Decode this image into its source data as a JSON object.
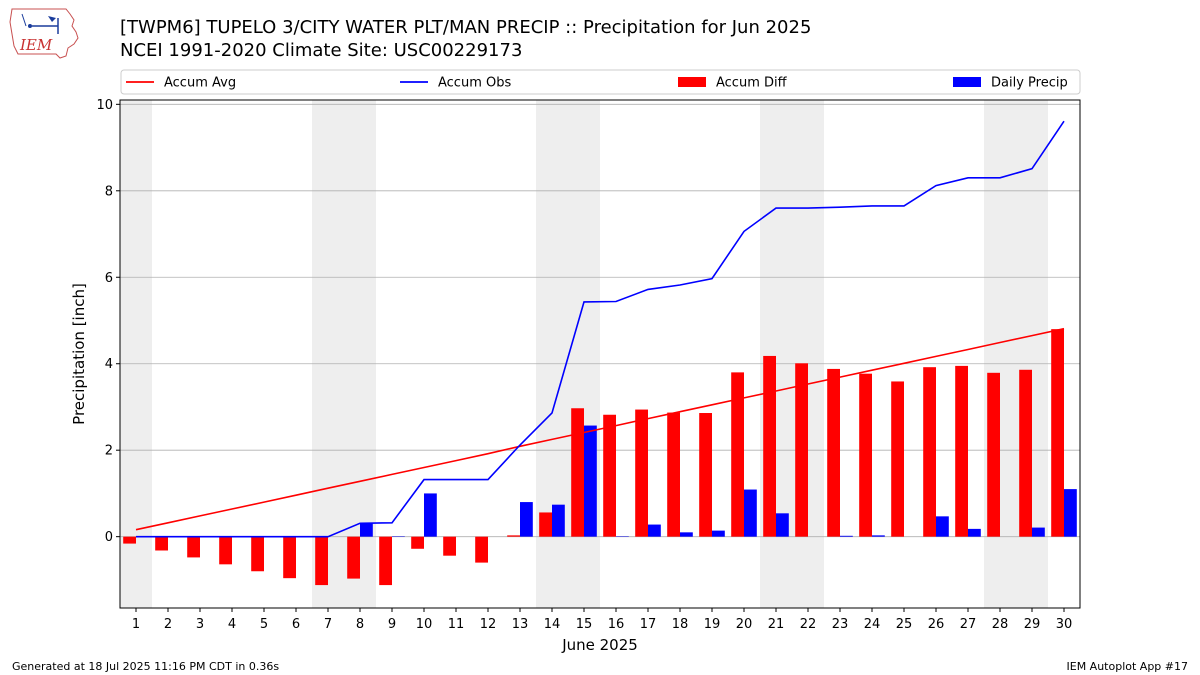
{
  "header": {
    "title_line1": "[TWPM6] TUPELO 3/CITY WATER PLT/MAN PRECIP :: Precipitation for Jun 2025",
    "title_line2": "NCEI 1991-2020 Climate Site: USC00229173",
    "logo_text": "IEM"
  },
  "footer": {
    "generated": "Generated at 18 Jul 2025 11:16 PM CDT in 0.36s",
    "app": "IEM Autoplot App #17"
  },
  "colors": {
    "accum_avg": "#ff0000",
    "accum_obs": "#0000ff",
    "accum_diff": "#ff0000",
    "daily_precip": "#0000ff",
    "weekend_shade": "#eeeeee",
    "grid": "#b0b0b0"
  },
  "chart_data": {
    "type": "bar",
    "xlabel": "June 2025",
    "ylabel": "Precipitation [inch]",
    "ylim": [
      -1.65,
      10.1
    ],
    "yticks": [
      0,
      2,
      4,
      6,
      8,
      10
    ],
    "xlim": [
      0.5,
      30.5
    ],
    "grid": "horizontal",
    "legend_position": "top",
    "shaded_days": [
      [
        1,
        1
      ],
      [
        7,
        8
      ],
      [
        14,
        15
      ],
      [
        21,
        22
      ],
      [
        28,
        29
      ]
    ],
    "days": [
      1,
      2,
      3,
      4,
      5,
      6,
      7,
      8,
      9,
      10,
      11,
      12,
      13,
      14,
      15,
      16,
      17,
      18,
      19,
      20,
      21,
      22,
      23,
      24,
      25,
      26,
      27,
      28,
      29,
      30
    ],
    "series": [
      {
        "name": "Accum Avg",
        "kind": "line",
        "values": [
          0.16,
          0.32,
          0.48,
          0.64,
          0.8,
          0.96,
          1.12,
          1.28,
          1.44,
          1.6,
          1.76,
          1.92,
          2.09,
          2.25,
          2.41,
          2.57,
          2.73,
          2.89,
          3.05,
          3.21,
          3.37,
          3.53,
          3.69,
          3.85,
          4.01,
          4.17,
          4.33,
          4.49,
          4.65,
          4.81
        ]
      },
      {
        "name": "Accum Obs",
        "kind": "line",
        "values": [
          0.0,
          0.0,
          0.0,
          0.0,
          0.0,
          0.0,
          0.0,
          0.31,
          0.32,
          1.32,
          1.32,
          1.32,
          2.12,
          2.86,
          5.43,
          5.44,
          5.72,
          5.82,
          5.97,
          7.06,
          7.6,
          7.6,
          7.62,
          7.65,
          7.65,
          8.12,
          8.3,
          8.3,
          8.51,
          9.61
        ]
      },
      {
        "name": "Accum Diff",
        "kind": "bar",
        "values": [
          -0.16,
          -0.32,
          -0.48,
          -0.64,
          -0.8,
          -0.96,
          -1.12,
          -0.97,
          -1.12,
          -0.28,
          -0.44,
          -0.6,
          0.03,
          0.56,
          2.97,
          2.82,
          2.94,
          2.87,
          2.86,
          3.8,
          4.18,
          4.01,
          3.88,
          3.77,
          3.59,
          3.92,
          3.95,
          3.79,
          3.86,
          4.8
        ]
      },
      {
        "name": "Daily Precip",
        "kind": "bar",
        "values": [
          0.0,
          0.0,
          0.0,
          0.0,
          0.0,
          0.0,
          0.0,
          0.31,
          0.01,
          1.0,
          0.0,
          0.0,
          0.8,
          0.74,
          2.57,
          0.01,
          0.28,
          0.1,
          0.14,
          1.09,
          0.54,
          0.0,
          0.02,
          0.03,
          0.0,
          0.47,
          0.18,
          0.0,
          0.21,
          1.1
        ]
      }
    ]
  }
}
